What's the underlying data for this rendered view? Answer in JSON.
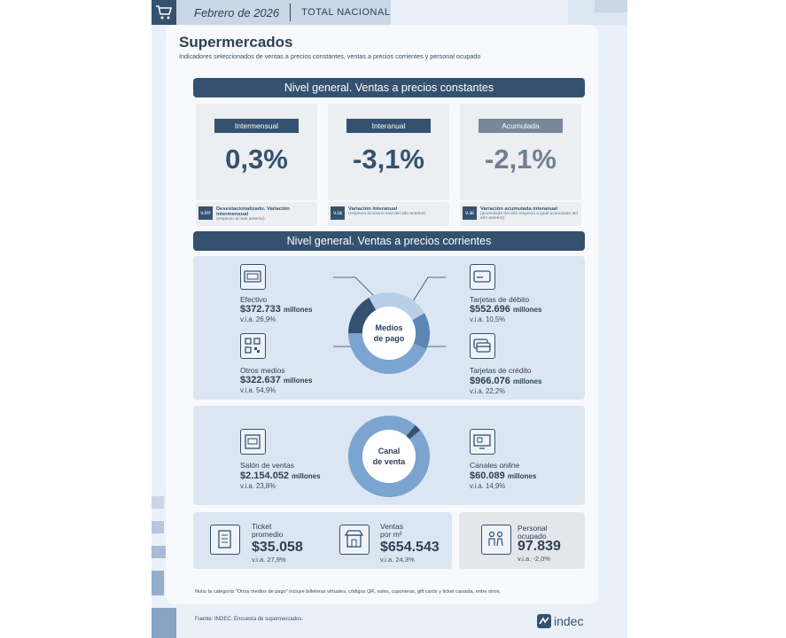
{
  "header": {
    "date": "Febrero de 2026",
    "scope": "TOTAL NACIONAL"
  },
  "title": "Supermercados",
  "subtitle": "Indicadores seleccionados de ventas a precios constantes, ventas a precios corrientes y personal ocupado",
  "constant": {
    "banner": "Nivel general. Ventas a precios constantes",
    "kpis": [
      {
        "tag": "Intermensual",
        "value": "0,3%",
        "icon": "v.im",
        "note": "Desestacionalizado. Variación intermensual",
        "note_sub": "(respecto al mes anterior)"
      },
      {
        "tag": "Interanual",
        "value": "-3,1%",
        "icon": "v.ia",
        "note": "Variación interanual",
        "note_sub": "(respecto al mismo mes del año anterior)"
      },
      {
        "tag": "Acumulada",
        "value": "-2,1%",
        "icon": "v.ai",
        "note": "Variación acumulada interanual",
        "note_sub": "(acumulado del año respecto a igual acumulado del año anterior)"
      }
    ]
  },
  "current": {
    "banner": "Nivel general. Ventas a precios corrientes",
    "payment": {
      "center_line1": "Medios",
      "center_line2": "de pago",
      "items": [
        {
          "label": "Efectivo",
          "amount": "$372.733",
          "unit": "millones",
          "via": "v.i.a. 26,9%",
          "icon": "cash-icon"
        },
        {
          "label": "Tarjetas de débito",
          "amount": "$552.696",
          "unit": "millones",
          "via": "v.i.a. 10,5%",
          "icon": "debit-card-icon"
        },
        {
          "label": "Otros medios",
          "amount": "$322.637",
          "unit": "millones",
          "via": "v.i.a. 54,9%",
          "icon": "qr-code-icon"
        },
        {
          "label": "Tarjetas de crédito",
          "amount": "$966.076",
          "unit": "millones",
          "via": "v.i.a. 22,2%",
          "icon": "credit-cards-icon"
        }
      ],
      "colors": [
        "#34526f",
        "#b9cfe6",
        "#5d86b5",
        "#7ba4d0"
      ]
    },
    "channel": {
      "center_line1": "Canal",
      "center_line2": "de venta",
      "items": [
        {
          "label": "Salón de ventas",
          "amount": "$2.154.052",
          "unit": "millones",
          "via": "v.i.a. 23,8%",
          "icon": "store-icon"
        },
        {
          "label_a": "Canales ",
          "label_b": "online",
          "amount": "$60.089",
          "unit": "millones",
          "via": "v.i.a. 14,9%",
          "icon": "online-shop-icon"
        }
      ],
      "colors": [
        "#7ba4d0",
        "#34526f"
      ]
    }
  },
  "stats": [
    {
      "label1": "Ticket",
      "label2": "promedio",
      "value": "$35.058",
      "via": "v.i.a. 27,9%",
      "icon": "receipt-icon"
    },
    {
      "label1": "Ventas",
      "label2": "por m²",
      "value": "$654.543",
      "via": "v.i.a. 24,3%",
      "icon": "shop-front-icon"
    },
    {
      "label1": "Personal",
      "label2": "ocupado",
      "value": "97.839",
      "via": "v.i.a. -2,0%",
      "icon": "people-icon"
    }
  ],
  "footnote": "Nota: la categoría \"Otros medios de pago\" incluye billeteras virtuales, códigos QR, vales, cuponeras, gift cards y ticket canasta, entre otros.",
  "source": "Fuente: INDEC. Encuesta de supermercados.",
  "logo": "indec",
  "colors": {
    "navy": "#34526f",
    "grey_tag": "#76889a",
    "panel": "#dbe6f2"
  }
}
